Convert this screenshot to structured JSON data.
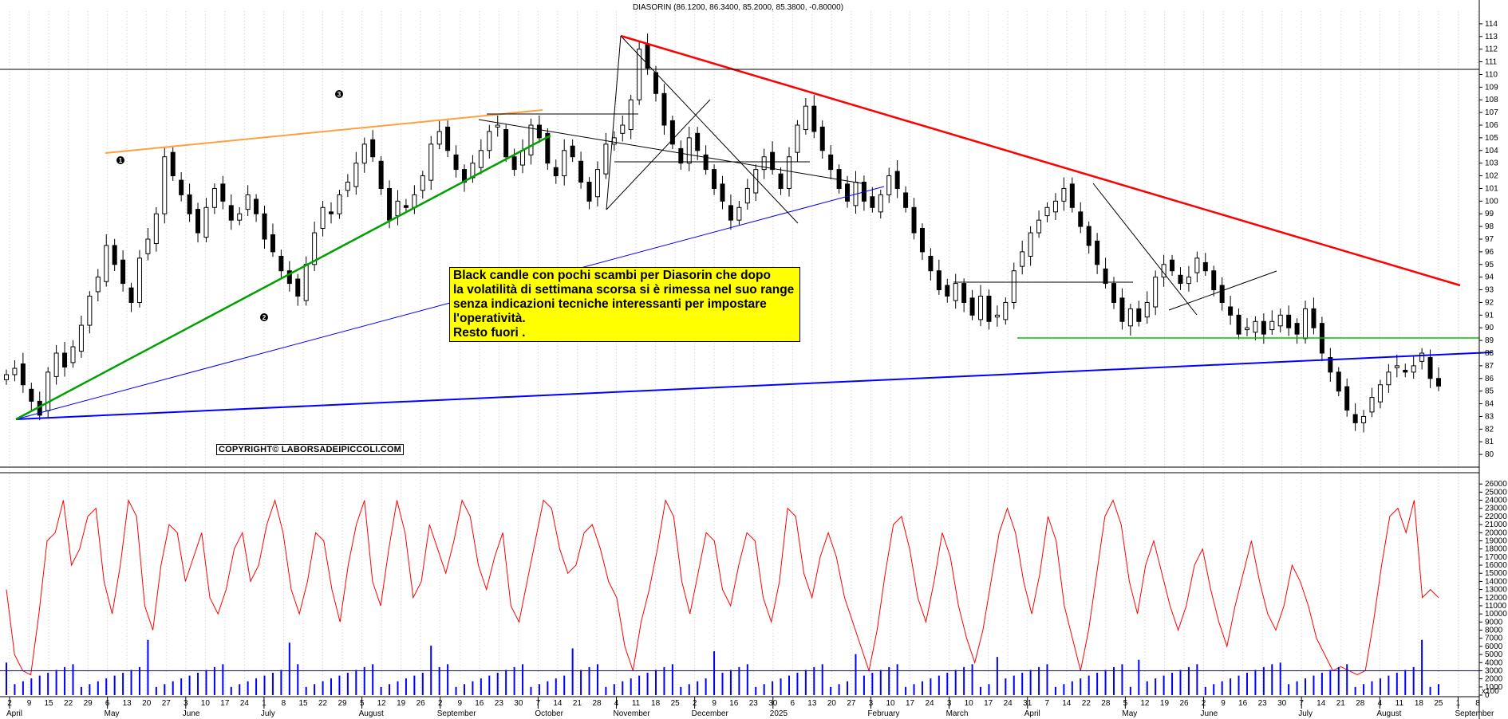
{
  "chart_data": [
    {
      "type": "candlestick",
      "title": "DIASORIN (86.1200, 86.3400, 85.2000, 85.3800, -0.80000)",
      "ylim": [
        79,
        115
      ],
      "y_ticks": [
        80,
        81,
        82,
        83,
        84,
        85,
        86,
        87,
        88,
        89,
        90,
        91,
        92,
        93,
        94,
        95,
        96,
        97,
        98,
        99,
        100,
        101,
        102,
        103,
        104,
        105,
        106,
        107,
        108,
        109,
        110,
        111,
        112,
        113,
        114
      ],
      "x_tick_labels": [
        "2",
        "9",
        "15",
        "22",
        "29",
        "6",
        "13",
        "20",
        "27",
        "3",
        "10",
        "17",
        "24",
        "1",
        "8",
        "15",
        "22",
        "29",
        "5",
        "12",
        "19",
        "26",
        "2",
        "9",
        "16",
        "23",
        "30",
        "7",
        "14",
        "21",
        "28",
        "4",
        "11",
        "18",
        "25",
        "2",
        "9",
        "16",
        "23",
        "30",
        "6",
        "13",
        "20",
        "27",
        "3",
        "10",
        "17",
        "24",
        "3",
        "10",
        "17",
        "24",
        "31",
        "7",
        "14",
        "22",
        "28",
        "5",
        "12",
        "19",
        "26",
        "2",
        "9",
        "16",
        "23",
        "30",
        "7",
        "14",
        "21",
        "28",
        "4",
        "11",
        "18",
        "25",
        "1",
        "8"
      ],
      "month_labels": [
        "April",
        "May",
        "June",
        "July",
        "August",
        "September",
        "October",
        "November",
        "December",
        "2025",
        "February",
        "March",
        "April",
        "May",
        "June",
        "July",
        "August",
        "September"
      ],
      "close_series": [
        86.3,
        86.8,
        85.5,
        84.2,
        83.1,
        86.5,
        88.0,
        86.9,
        88.5,
        90.2,
        92.5,
        94.0,
        96.5,
        95.0,
        93.5,
        92.0,
        95.5,
        97.0,
        99.0,
        103.5,
        102.0,
        100.5,
        99.0,
        97.5,
        99.5,
        101.0,
        100.0,
        98.5,
        99.0,
        100.5,
        99.0,
        97.0,
        96.0,
        94.5,
        93.5,
        92.5,
        95.0,
        97.5,
        99.5,
        99.0,
        100.5,
        101.5,
        103.0,
        104.5,
        103.5,
        101.0,
        98.5,
        100.0,
        99.5,
        100.5,
        102.0,
        104.5,
        105.5,
        104.0,
        102.5,
        101.5,
        103.0,
        104.0,
        105.5,
        106.0,
        103.5,
        102.5,
        104.0,
        106.0,
        105.0,
        103.0,
        102.0,
        104.0,
        103.5,
        101.5,
        100.0,
        102.5,
        104.5,
        105.0,
        106.0,
        108.0,
        112.0,
        110.5,
        108.5,
        106.0,
        104.5,
        103.0,
        105.0,
        104.0,
        102.5,
        101.0,
        100.0,
        98.5,
        99.5,
        101.0,
        102.5,
        103.5,
        102.5,
        101.0,
        103.5,
        106.0,
        107.5,
        105.5,
        104.0,
        102.5,
        101.0,
        100.0,
        101.5,
        100.0,
        99.5,
        100.5,
        102.0,
        101.0,
        99.5,
        97.5,
        96.0,
        94.5,
        93.0,
        92.5,
        93.5,
        92.0,
        91.0,
        92.5,
        90.5,
        91.0,
        92.0,
        94.5,
        96.0,
        97.5,
        98.5,
        99.5,
        100.0,
        101.0,
        99.5,
        98.0,
        96.5,
        95.0,
        93.5,
        92.0,
        90.5,
        91.5,
        90.5,
        92.0,
        94.0,
        95.0,
        94.5,
        93.5,
        94.0,
        95.5,
        94.5,
        93.0,
        92.0,
        91.0,
        89.5,
        90.0,
        90.5,
        89.5,
        90.5,
        91.0,
        90.0,
        89.5,
        91.5,
        90.0,
        88.0,
        86.5,
        85.0,
        83.5,
        82.5,
        83.0,
        84.5,
        85.5,
        86.5,
        87.0,
        86.5,
        87.0,
        88.0,
        86.0,
        85.4
      ]
    },
    {
      "type": "line",
      "ylim": [
        0,
        27000
      ],
      "y_ticks": [
        0,
        1000,
        2000,
        3000,
        4000,
        5000,
        6000,
        7000,
        8000,
        9000,
        10000,
        11000,
        12000,
        13000,
        14000,
        15000,
        16000,
        17000,
        18000,
        19000,
        20000,
        21000,
        22000,
        23000,
        24000,
        25000,
        26000
      ],
      "series": [
        {
          "values": [
            13000,
            5000,
            3000,
            2500,
            10000,
            19000,
            20000,
            24000,
            16000,
            18000,
            22000,
            23000,
            14000,
            10000,
            16000,
            24000,
            22000,
            11000,
            8000,
            16000,
            21000,
            20000,
            14000,
            17000,
            20000,
            12000,
            10000,
            13000,
            18000,
            20000,
            14000,
            16000,
            21000,
            24000,
            20000,
            13000,
            10000,
            14000,
            20000,
            19000,
            13000,
            9000,
            16000,
            21000,
            24000,
            14000,
            11000,
            18000,
            24000,
            20000,
            12000,
            14000,
            21000,
            18000,
            15000,
            19000,
            24000,
            22000,
            16000,
            13000,
            17000,
            20000,
            11000,
            9000,
            14000,
            19000,
            24000,
            23000,
            18000,
            15000,
            16000,
            20000,
            21000,
            18000,
            14000,
            12000,
            6000,
            3000,
            9000,
            13000,
            18000,
            24000,
            22000,
            14000,
            10000,
            15000,
            20000,
            19000,
            13000,
            11000,
            16000,
            20000,
            19000,
            12000,
            9000,
            14000,
            23000,
            22000,
            15000,
            12000,
            17000,
            20000,
            17000,
            12000,
            9000,
            6000,
            3000,
            8000,
            15000,
            21000,
            22000,
            18000,
            12000,
            9000,
            14000,
            20000,
            17000,
            11000,
            7000,
            4000,
            8000,
            14000,
            20000,
            23000,
            20000,
            14000,
            10000,
            15000,
            22000,
            19000,
            11000,
            7000,
            3000,
            8000,
            15000,
            22000,
            24000,
            21000,
            14000,
            10000,
            16000,
            19000,
            15000,
            11000,
            8000,
            11000,
            16000,
            18000,
            13000,
            9000,
            6000,
            11000,
            15000,
            19000,
            14000,
            10000,
            8000,
            11000,
            16000,
            14000,
            11000,
            7000,
            5000,
            3000,
            3500,
            3000,
            2500,
            3000,
            9000,
            16000,
            22000,
            23000,
            20000,
            24000,
            12000,
            13000,
            12000
          ],
          "color": "#ff0000"
        },
        {
          "values": [
            2000,
            2500,
            1500,
            3000,
            1800,
            2200,
            1700,
            2600,
            1500,
            2100,
            3500,
            1900,
            1600,
            2400,
            1800,
            2000,
            1700,
            3000,
            2200,
            1900,
            2500,
            1700,
            1500,
            2300,
            2000,
            1800,
            2700,
            1600,
            2100,
            1900
          ],
          "color": "#0000ff"
        }
      ],
      "reference_line": 3000
    }
  ],
  "annotation": {
    "lines": [
      "Black candle con pochi scambi per Diasorin che dopo",
      "la volatilità di settimana scorsa si è rimessa nel suo range",
      "senza indicazioni tecniche interessanti per impostare",
      "l'operatività.",
      "Resto fuori ."
    ]
  },
  "copyright": "COPYRIGHT© LABORSADEIPICCOLI.COM",
  "wave_markers": [
    "1",
    "2",
    "3"
  ],
  "volume_axis_unit": "x100",
  "colors": {
    "trend_red": "#ff0000",
    "trend_green": "#00a000",
    "trend_orange": "#ffa040",
    "trend_blue": "#0000ff",
    "hline_green": "#00c000",
    "volume": "#0000ff",
    "oscillator": "#ff0000"
  }
}
